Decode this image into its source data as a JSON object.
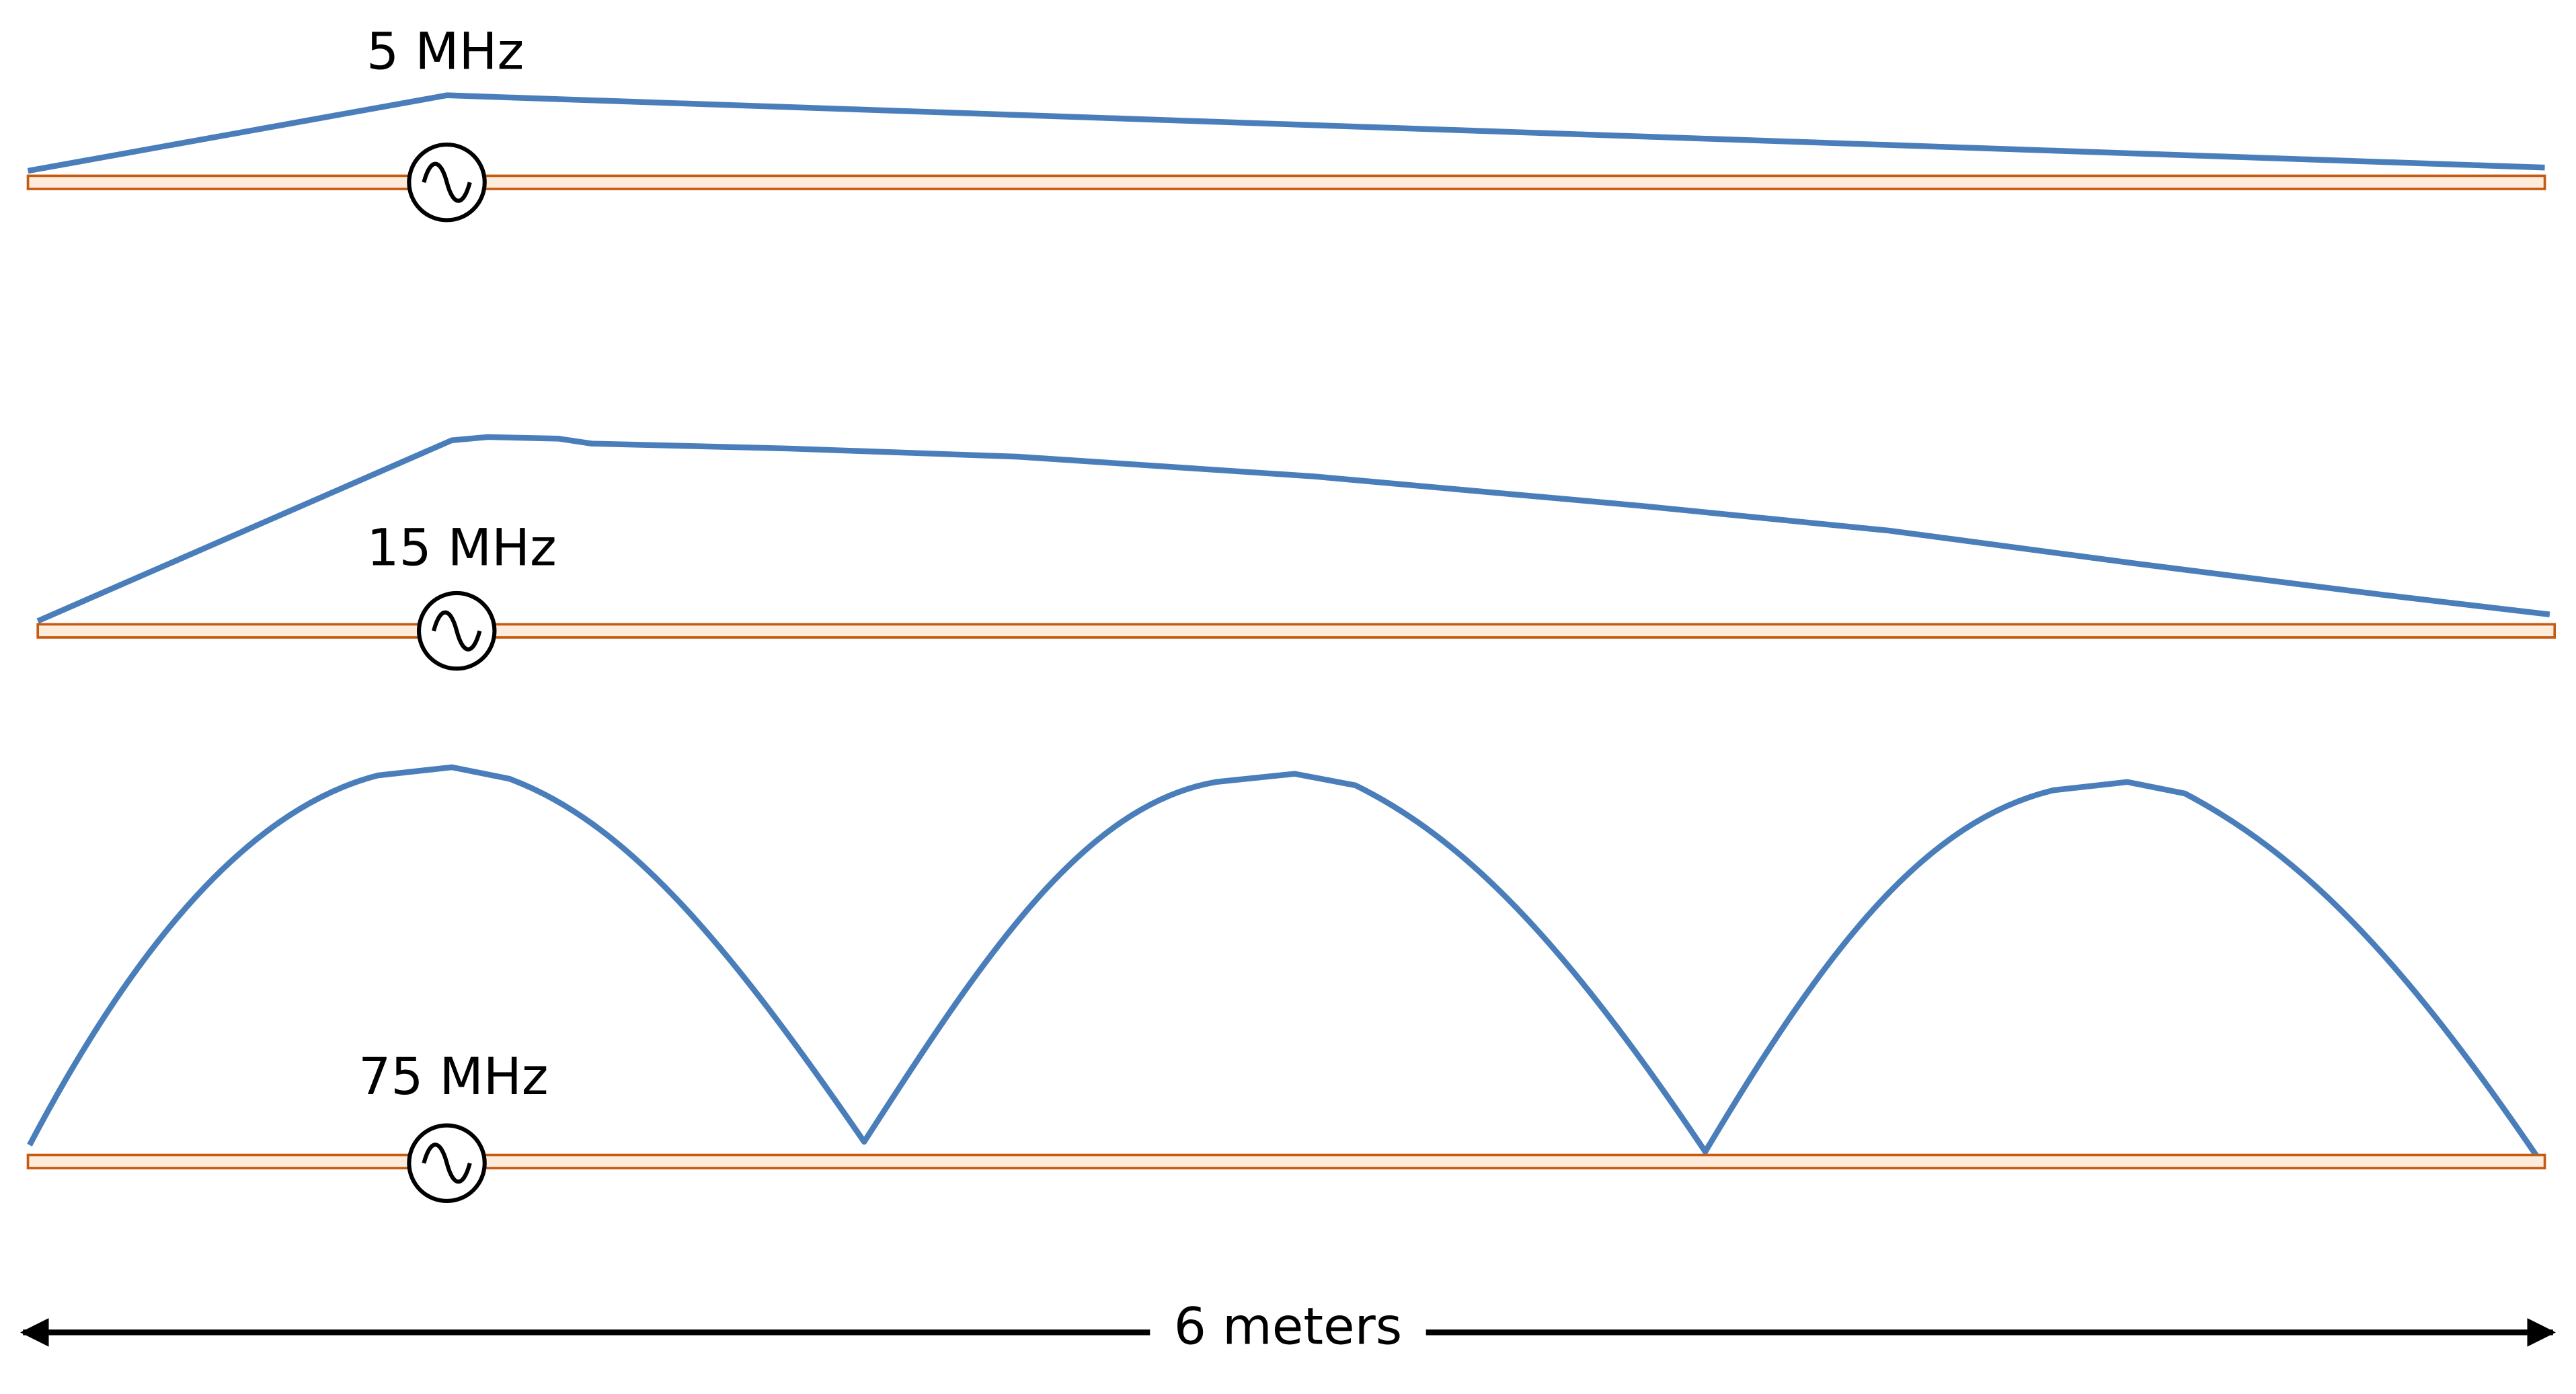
{
  "panels": [
    {
      "label": "5 MHz"
    },
    {
      "label": "15 MHz"
    },
    {
      "label": "75 MHz"
    }
  ],
  "dimension": {
    "label": "6 meters"
  }
}
